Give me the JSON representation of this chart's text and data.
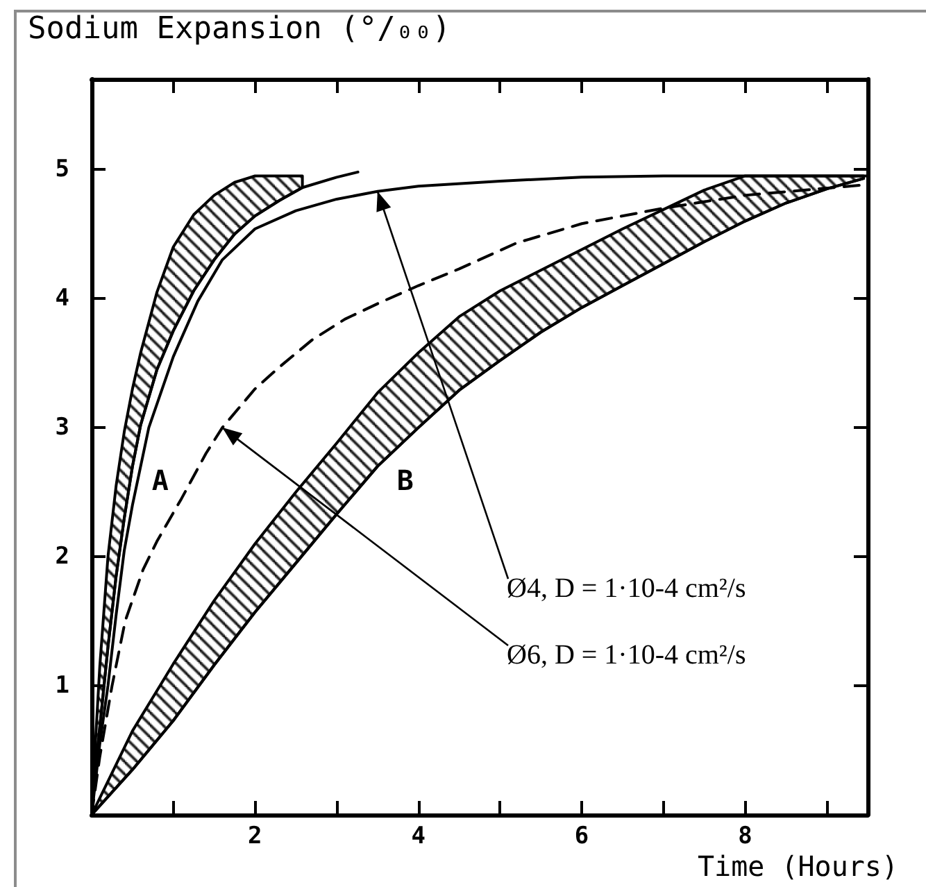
{
  "chart_data": {
    "type": "line",
    "xlabel": "Time (Hours)",
    "ylabel": "Sodium Expansion (°/₀₀)",
    "xlim": [
      0,
      9.5
    ],
    "ylim": [
      0,
      5.7
    ],
    "xticks": [
      {
        "value": 1,
        "label": null
      },
      2,
      {
        "value": 3,
        "label": null
      },
      4,
      {
        "value": 5,
        "label": null
      },
      6,
      {
        "value": 7,
        "label": null
      },
      8,
      {
        "value": 9,
        "label": null
      }
    ],
    "yticks": [
      1,
      2,
      3,
      4,
      5
    ],
    "series": [
      {
        "name": "A",
        "color": "#000000",
        "x": [
          0,
          0.05,
          0.1,
          0.2,
          0.3,
          0.4,
          0.5,
          0.6,
          0.8,
          1.0,
          1.25,
          1.5,
          1.75,
          2.0,
          2.3,
          2.58,
          3.0,
          3.26
        ],
        "values": [
          0,
          0.35,
          0.68,
          1.3,
          1.85,
          2.3,
          2.7,
          3.02,
          3.45,
          3.75,
          4.06,
          4.3,
          4.5,
          4.64,
          4.76,
          4.86,
          4.94,
          4.98
        ],
        "lower": [
          0,
          0.35,
          0.68,
          1.3,
          1.85,
          2.3,
          2.7,
          3.02,
          3.45,
          3.75,
          4.06,
          4.3,
          4.5,
          4.64,
          4.76,
          4.86,
          null,
          null
        ],
        "upper": [
          0,
          0.6,
          1.15,
          2.0,
          2.55,
          2.97,
          3.3,
          3.58,
          4.05,
          4.4,
          4.65,
          4.8,
          4.9,
          4.95,
          4.95,
          4.95,
          null,
          null
        ]
      },
      {
        "color": "#000000",
        "x": [
          0,
          0.1,
          0.2,
          0.3,
          0.4,
          0.5,
          0.7,
          1.0,
          1.3,
          1.6,
          2.0,
          2.5,
          3.0,
          3.5,
          4.0,
          5.0,
          6.0,
          7.0,
          8.0,
          9.5
        ],
        "values": [
          0,
          0.55,
          1.0,
          1.55,
          2.05,
          2.4,
          3.0,
          3.55,
          3.98,
          4.3,
          4.54,
          4.68,
          4.77,
          4.83,
          4.87,
          4.91,
          4.94,
          4.95,
          4.95,
          4.95
        ]
      },
      {
        "color": "#000000",
        "line_style": "dashed",
        "x": [
          0,
          0.1,
          0.25,
          0.41,
          0.63,
          0.8,
          1.1,
          1.4,
          1.6,
          2.0,
          2.3,
          2.7,
          3.1,
          3.5,
          4.0,
          4.5,
          5.2,
          6.0,
          7.0,
          8.0,
          9.45
        ],
        "values": [
          0,
          0.45,
          1.0,
          1.5,
          1.9,
          2.12,
          2.45,
          2.8,
          3.0,
          3.3,
          3.47,
          3.68,
          3.84,
          3.96,
          4.1,
          4.23,
          4.43,
          4.58,
          4.7,
          4.8,
          4.88
        ]
      },
      {
        "name": "B",
        "color": "#000000",
        "x": [
          0,
          0.5,
          1,
          1.5,
          2,
          2.5,
          3,
          3.5,
          4,
          4.5,
          5,
          5.5,
          6,
          6.5,
          7,
          7.5,
          8,
          8.5,
          9,
          9.45
        ],
        "values": [
          0,
          0.35,
          0.73,
          1.16,
          1.57,
          1.95,
          2.33,
          2.7,
          3.0,
          3.29,
          3.52,
          3.74,
          3.93,
          4.1,
          4.27,
          4.44,
          4.6,
          4.74,
          4.85,
          4.93
        ],
        "lower": [
          0,
          0.35,
          0.73,
          1.16,
          1.57,
          1.95,
          2.33,
          2.7,
          3.0,
          3.29,
          3.52,
          3.74,
          3.93,
          4.1,
          4.27,
          4.44,
          4.6,
          4.74,
          4.85,
          4.93
        ],
        "upper": [
          0,
          0.65,
          1.17,
          1.66,
          2.1,
          2.5,
          2.88,
          3.27,
          3.58,
          3.86,
          4.06,
          4.22,
          4.38,
          4.54,
          4.69,
          4.84,
          4.95,
          4.95,
          4.95,
          4.95
        ]
      }
    ],
    "annotations": [
      {
        "text": "Ø4, D = 1·10-4 cm²/s",
        "x": 3.5,
        "y": 4.83
      },
      {
        "text": "Ø6, D = 1·10-4 cm²/s",
        "x": 1.6,
        "y": 3.0
      }
    ]
  }
}
